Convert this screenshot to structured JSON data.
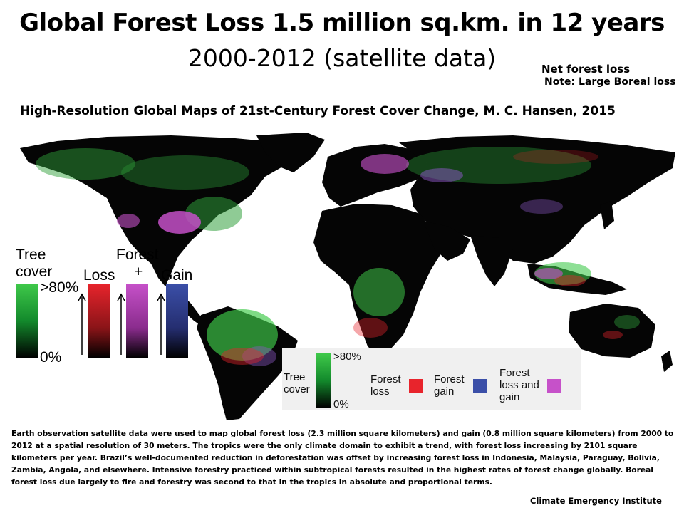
{
  "title": "Global Forest Loss 1.5 million sq.km. in 12 years",
  "subtitle": "2000-2012 (satellite data)",
  "note_line1": "Net forest loss",
  "note_line2": "Note: Large Boreal loss",
  "citation": "High-Resolution Global Maps of 21st-Century Forest Cover Change, M. C. Hansen, 2015",
  "legend_left": {
    "tree": "Tree",
    "cover": "cover",
    "forest": "Forest",
    "plus": "+",
    "loss": "Loss",
    "gain": "Gain",
    "top_pct": ">80%",
    "bottom_pct": "0%"
  },
  "legend_inset": {
    "top_pct": ">80%",
    "bottom_pct": "0%",
    "tree_cover_1": "Tree",
    "tree_cover_2": "cover",
    "loss_1": "Forest",
    "loss_2": "loss",
    "gain_1": "Forest",
    "gain_2": "gain",
    "both_1": "Forest",
    "both_2": "loss and",
    "both_3": "gain"
  },
  "colors": {
    "loss": "#e8242c",
    "gain": "#3b4fa8",
    "loss_and_gain": "#c651c9",
    "tree_cover": "#3fc94a",
    "land": "#000000"
  },
  "body_text": "Earth observation satellite data were used to map global forest loss (2.3 million square kilometers) and gain (0.8 million square kilometers) from 2000 to 2012 at a spatial resolution of 30 meters. The tropics were the only climate domain to exhibit a trend, with forest loss increasing by 2101 square kilometers per year. Brazil’s well-documented reduction in deforestation was offset by increasing forest loss in Indonesia, Malaysia, Paraguay, Bolivia, Zambia, Angola, and elsewhere. Intensive forestry practiced within subtropical forests resulted in the highest rates of forest change globally. Boreal forest loss due largely to fire and forestry was second to that in the tropics in absolute and proportional terms.",
  "credit": "Climate Emergency Institute"
}
